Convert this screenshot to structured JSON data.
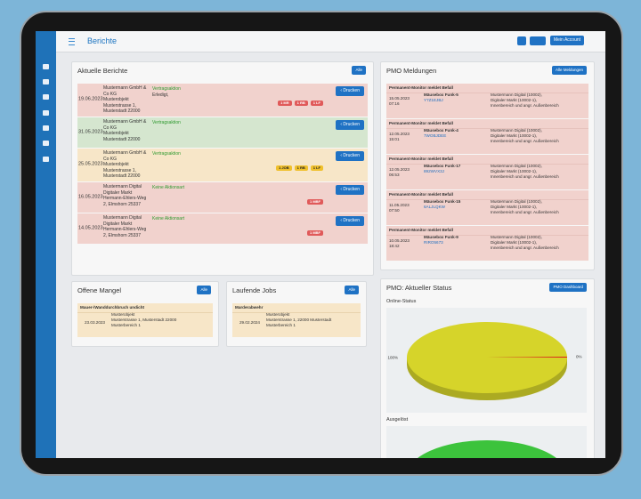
{
  "header": {
    "title": "Berichte",
    "account": "Mein Account"
  },
  "reports": {
    "title": "Aktuelle Berichte",
    "button": "Alle",
    "action": "‹ Drucken",
    "rows": [
      {
        "date": "19.06.2023",
        "address": [
          "Mustermann GmbH & Co KG",
          "Musterobjekt",
          "Musterstrasse 1,",
          "Musterstadt 22000"
        ],
        "status": "Vertragsaktion",
        "note": "Erledigt,",
        "badges": [
          "1 MR",
          "1 RB",
          "1 LF"
        ],
        "color": "#f1d2cd",
        "badge_color": "#e05a5a"
      },
      {
        "date": "31.05.2023",
        "address": [
          "Mustermann GmbH & Co KG",
          "Musterobjekt",
          "Musterstadt 22000"
        ],
        "status": "Vertragsaktion",
        "badges": [],
        "color": "#d5e6cf",
        "badge_color": "#e05a5a"
      },
      {
        "date": "25.05.2023",
        "address": [
          "Mustermann GmbH & Co KG",
          "Musterobjekt",
          "Musterstrasse 1,",
          "Musterstadt 22000"
        ],
        "status": "Vertragsaktion",
        "badges": [
          "1 JOB",
          "1 RB",
          "1 LF"
        ],
        "color": "#f7e6c8",
        "badge_color": "#f0c02c"
      },
      {
        "date": "16.05.2023",
        "address": [
          "Mustermann Digital",
          "Digitaler Markt",
          "Hermann-Ehlers-Weg",
          "2, Elmshorn 25337"
        ],
        "status": "Keine Aktionsart",
        "badges": [
          "1 MBF"
        ],
        "color": "#f1d2cd",
        "badge_color": "#e05a5a"
      },
      {
        "date": "14.05.2023",
        "address": [
          "Mustermann Digital",
          "Digitaler Markt",
          "Hermann-Ehlers-Weg",
          "2, Elmshorn 25337"
        ],
        "status": "Keine Aktionsart",
        "badges": [
          "1 MBF"
        ],
        "color": "#f1d2cd",
        "badge_color": "#e05a5a"
      }
    ]
  },
  "pmo": {
    "title": "PMO Meldungen",
    "button": "Alle Meldungen",
    "items": [
      {
        "heading": "Permanent-Monitor meldet Befall",
        "date": "15.05.2023",
        "time": "07:16",
        "device": "Mäusebox Funk-5",
        "code": "Y7Z1EJBJ",
        "location": [
          "Mustermann Digital (10002),",
          "Digitaler Markt (10002-1),",
          "Innenbereich und angr. Außenbereich"
        ]
      },
      {
        "heading": "Permanent-Monitor meldet Befall",
        "date": "12.05.2023",
        "time": "15:01",
        "device": "Mäusebox Funk-4",
        "code": "7WOBJDEE",
        "location": [
          "Mustermann Digital (10002),",
          "Digitaler Markt (10002-1),",
          "Innenbereich und angr. Außenbereich"
        ]
      },
      {
        "heading": "Permanent-Monitor meldet Befall",
        "date": "12.05.2023",
        "time": "06:53",
        "device": "Mäusebox Funk-17",
        "code": "892WVX3J",
        "location": [
          "Mustermann Digital (10002),",
          "Digitaler Markt (10002-1),",
          "Innenbereich und angr. Außenbereich"
        ]
      },
      {
        "heading": "Permanent-Monitor meldet Befall",
        "date": "11.05.2023",
        "time": "07:50",
        "device": "Mäusebox Funk-15",
        "code": "6ALJLQKW",
        "location": [
          "Mustermann Digital (10002),",
          "Digitaler Markt (10002-1),",
          "Innenbereich und angr. Außenbereich"
        ]
      },
      {
        "heading": "Permanent-Monitor meldet Befall",
        "date": "10.05.2023",
        "time": "18:42",
        "device": "Mäusebox Funk-9",
        "code": "RIRO5673",
        "location": [
          "Mustermann Digital (10002),",
          "Digitaler Markt (10002-1),",
          "Innenbereich und angr. Außenbereich"
        ]
      }
    ]
  },
  "defects": {
    "title": "Offene Mangel",
    "button": "Alle",
    "item": {
      "heading": "Mauer-/Wanddurchbruch undicht",
      "date": "23.03.2023",
      "lines": [
        "Musterobjekt",
        "Musterstrasse 1, Musterstadt 22000",
        "Musterbereich 1"
      ]
    }
  },
  "jobs": {
    "title": "Laufende Jobs",
    "button": "Alle",
    "item": {
      "heading": "Marderabwehr",
      "date": "29.02.2024",
      "lines": [
        "Musterobjekt",
        "Musterstrasse 1, 22000 Musterstadt",
        "Musterbereich 1"
      ]
    }
  },
  "status": {
    "title": "PMO: Aktueller Status",
    "button": "PMO Dashboard",
    "charts": [
      {
        "type": "pie",
        "title": "Online-Status",
        "values": [
          99.6,
          0.4
        ],
        "value_labels": [
          "100%",
          "0%"
        ],
        "colors": [
          "#d6d42a",
          "#e01818"
        ]
      },
      {
        "type": "pie",
        "title": "Ausgelöst",
        "values": [
          100
        ],
        "colors": [
          "#3cc33c"
        ]
      }
    ]
  }
}
